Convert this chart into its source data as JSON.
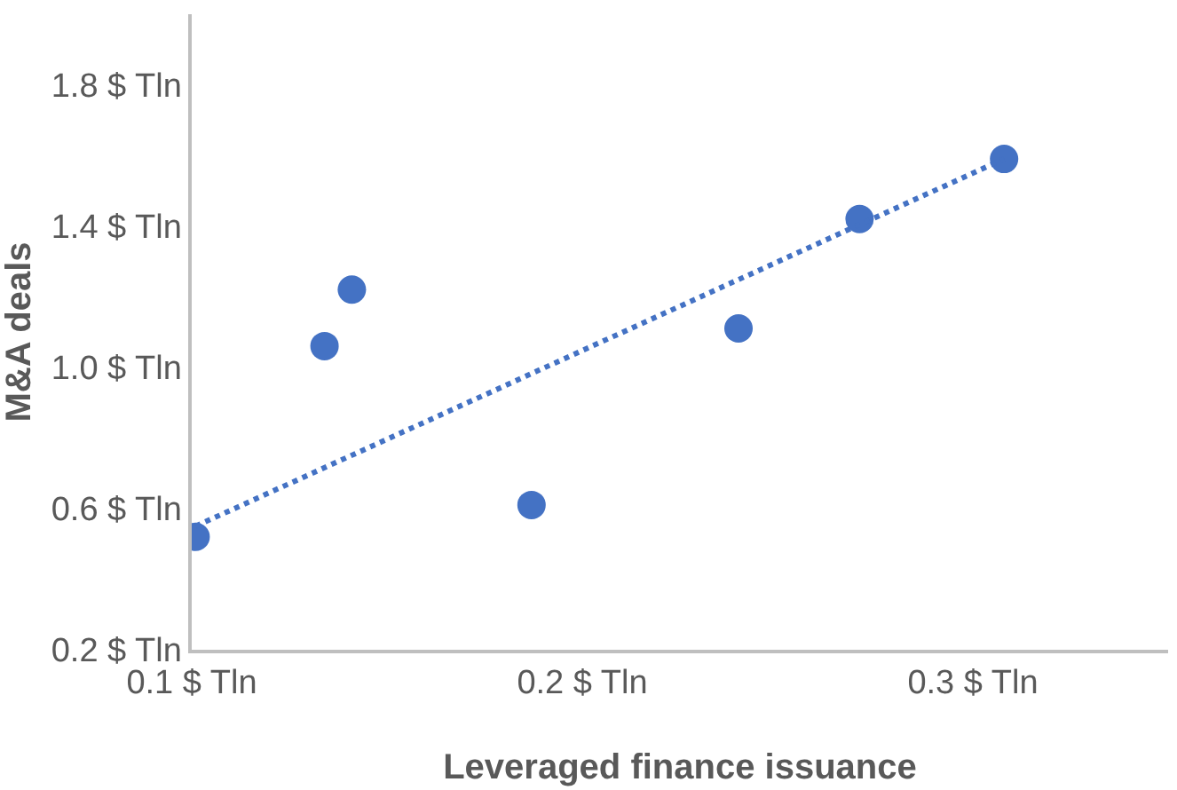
{
  "chart_data": {
    "type": "scatter",
    "xlabel": "Leveraged finance issuance",
    "ylabel": "M&A deals",
    "xlim": [
      0.1,
      0.35
    ],
    "ylim": [
      0.2,
      2.0
    ],
    "xticks": [
      {
        "value": 0.1,
        "label": "0.1 $ Tln"
      },
      {
        "value": 0.2,
        "label": "0.2 $ Tln"
      },
      {
        "value": 0.3,
        "label": "0.3 $ Tln"
      }
    ],
    "yticks": [
      {
        "value": 0.2,
        "label": "0.2 $ Tln"
      },
      {
        "value": 0.6,
        "label": "0.6 $ Tln"
      },
      {
        "value": 1.0,
        "label": "1.0 $ Tln"
      },
      {
        "value": 1.4,
        "label": "1.4 $ Tln"
      },
      {
        "value": 1.8,
        "label": "1.8 $ Tln"
      }
    ],
    "marker": "circle",
    "series": [
      {
        "color": "#4472c4",
        "x": [
          0.101,
          0.134,
          0.141,
          0.187,
          0.24,
          0.271,
          0.308
        ],
        "values": [
          0.52,
          1.06,
          1.22,
          0.61,
          1.11,
          1.42,
          1.59
        ]
      },
      {
        "type": "line",
        "color": "#4472c4",
        "line_style": "dotted",
        "marker": "none",
        "x": [
          0.101,
          0.308
        ],
        "values": [
          0.55,
          1.59
        ]
      }
    ]
  }
}
